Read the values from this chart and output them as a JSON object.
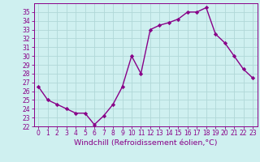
{
  "x": [
    0,
    1,
    2,
    3,
    4,
    5,
    6,
    7,
    8,
    9,
    10,
    11,
    12,
    13,
    14,
    15,
    16,
    17,
    18,
    19,
    20,
    21,
    22,
    23
  ],
  "y": [
    26.5,
    25.0,
    24.5,
    24.0,
    23.5,
    23.5,
    22.2,
    23.2,
    24.5,
    26.5,
    30.0,
    28.0,
    33.0,
    33.5,
    33.8,
    34.2,
    35.0,
    35.0,
    35.5,
    32.5,
    31.5,
    30.0,
    28.5,
    27.5
  ],
  "line_color": "#880088",
  "marker": "D",
  "marker_size": 2.2,
  "bg_color": "#cff0f0",
  "grid_color": "#b0d8d8",
  "xlabel": "Windchill (Refroidissement éolien,°C)",
  "xlim": [
    -0.5,
    23.5
  ],
  "ylim": [
    22,
    36
  ],
  "yticks": [
    22,
    23,
    24,
    25,
    26,
    27,
    28,
    29,
    30,
    31,
    32,
    33,
    34,
    35
  ],
  "xticks": [
    0,
    1,
    2,
    3,
    4,
    5,
    6,
    7,
    8,
    9,
    10,
    11,
    12,
    13,
    14,
    15,
    16,
    17,
    18,
    19,
    20,
    21,
    22,
    23
  ],
  "tick_fontsize": 5.5,
  "xlabel_fontsize": 6.8,
  "line_width": 1.0
}
